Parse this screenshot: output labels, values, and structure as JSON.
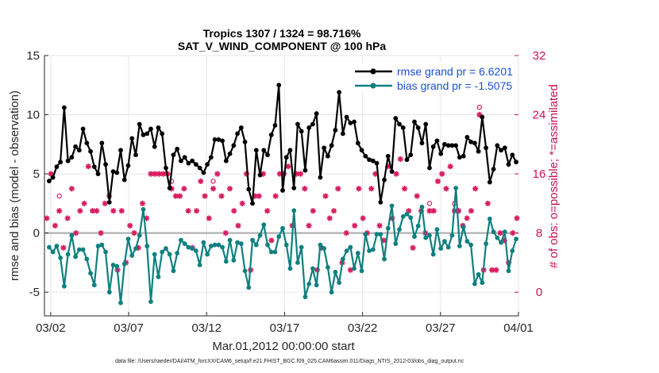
{
  "chart_data": {
    "type": "line",
    "title": "Tropics 1307 / 1324 = 98.716%",
    "subtitle": "SAT_V_WIND_COMPONENT @ 100 hPa",
    "xlabel": "Mar.01,2012 00:00:00 start",
    "ylabel": "rmse and bias (model - observation)",
    "ylabel_right": "# of obs: o=possible; *=assimilated",
    "x_range_days": [
      0.6,
      31
    ],
    "ylim": [
      -7,
      15
    ],
    "ylim_right": [
      -3.2,
      32
    ],
    "x_ticks": [
      {
        "day": 1,
        "label": "03/02"
      },
      {
        "day": 6,
        "label": "03/07"
      },
      {
        "day": 11,
        "label": "03/12"
      },
      {
        "day": 16,
        "label": "03/17"
      },
      {
        "day": 21,
        "label": "03/22"
      },
      {
        "day": 26,
        "label": "03/27"
      },
      {
        "day": 31,
        "label": "04/01"
      }
    ],
    "y_ticks": [
      "-5",
      "0",
      "5",
      "10",
      "15"
    ],
    "y_ticks_right": [
      "0",
      "8",
      "16",
      "24",
      "32"
    ],
    "grid": true,
    "colors": {
      "rmse": "#000000",
      "bias": "#0f8080",
      "obs": "#d81b60",
      "zero_line": "#aaaaaa"
    },
    "series": [
      {
        "name": "rmse grand pr = 6.6201",
        "color": "#000000",
        "values": [
          4.4,
          4.7,
          5.6,
          6.0,
          10.6,
          6.1,
          6.4,
          7.3,
          7.0,
          8.8,
          7.6,
          6.9,
          5.6,
          5.0,
          7.6,
          5.8,
          2.6,
          5.2,
          5.1,
          7.0,
          4.5,
          5.7,
          8.0,
          6.6,
          9.2,
          8.3,
          8.4,
          8.8,
          7.3,
          8.9,
          8.4,
          5.5,
          3.8,
          6.6,
          7.1,
          6.1,
          6.4,
          5.9,
          6.1,
          5.8,
          5.5,
          5.1,
          5.8,
          6.4,
          7.9,
          7.9,
          7.8,
          6.1,
          6.7,
          7.4,
          8.4,
          8.9,
          7.7,
          3.7,
          2.5,
          7.0,
          4.9,
          7.0,
          6.6,
          8.3,
          9.1,
          12.5,
          3.6,
          6.4,
          7.0,
          3.8,
          9.2,
          8.6,
          5.3,
          8.9,
          9.2,
          10.1,
          4.7,
          7.2,
          6.5,
          7.4,
          8.7,
          11.9,
          8.4,
          9.8,
          9.3,
          9.4,
          7.6,
          7.0,
          6.5,
          6.2,
          6.1,
          5.9,
          2.6,
          4.5,
          6.5,
          5.2,
          9.7,
          9.2,
          8.9,
          6.2,
          6.6,
          9.4,
          8.9,
          7.6,
          9.2,
          5.5,
          7.3,
          7.8,
          6.7,
          7.5,
          7.4,
          7.4,
          7.4,
          6.4,
          6.5,
          8.1,
          7.7,
          7.6,
          6.9,
          9.8,
          7.2,
          4.3,
          5.4,
          7.4,
          7.0,
          7.2,
          5.8,
          6.6,
          6.0
        ],
        "x_start": 0.9,
        "x_end": 30.85
      },
      {
        "name": "bias grand pr = -1.5075",
        "color": "#0f8080",
        "values": [
          -1.2,
          -1.6,
          -1.1,
          -2.1,
          -4.5,
          -1.8,
          -0.2,
          -2.0,
          -1.4,
          -1.4,
          -2.2,
          -3.4,
          -4.4,
          -1.1,
          -1.0,
          -1.6,
          -5.0,
          -2.7,
          -2.8,
          -5.9,
          -2.6,
          -0.5,
          -1.9,
          -1.3,
          -0.2,
          2.0,
          -1.1,
          -5.8,
          -1.8,
          -3.7,
          -1.6,
          -1.3,
          -1.8,
          -3.2,
          -1.7,
          -0.6,
          -0.9,
          -1.2,
          -1.3,
          -1.5,
          -2.7,
          -0.8,
          -1.8,
          -1.1,
          -1.0,
          -1.0,
          -1.2,
          -2.4,
          -0.6,
          -2.3,
          -0.8,
          -0.9,
          -3.2,
          -4.6,
          -0.6,
          -1.0,
          -0.2,
          0.7,
          -1.0,
          -1.6,
          -1.6,
          -0.3,
          0.4,
          -1.0,
          -3.0,
          1.9,
          -2.5,
          -1.2,
          -5.4,
          -4.3,
          -3.0,
          -4.4,
          -1.0,
          -1.3,
          -2.9,
          -5.0,
          -3.3,
          -4.2,
          -2.2,
          -1.5,
          -1.2,
          -3.0,
          -1.7,
          -3.2,
          -0.1,
          -1.5,
          -1.4,
          -0.1,
          -0.1,
          -2.2,
          0.4,
          2.3,
          -0.9,
          0.3,
          1.4,
          1.6,
          1.3,
          -0.3,
          0.6,
          2.2,
          -0.4,
          -0.2,
          -1.8,
          0.3,
          -1.3,
          -0.7,
          -1.2,
          -0.2,
          3.8,
          -1.1,
          0.5,
          -0.7,
          -1.0,
          -4.3,
          -3.5,
          -4.2,
          -0.9,
          1.2,
          0.1,
          -0.4,
          -0.8,
          0.1,
          -3.2,
          -1.5,
          -0.5
        ],
        "x_start": 0.9,
        "x_end": 30.85
      }
    ],
    "obs_counts": {
      "assimilated": [
        10,
        16,
        9,
        11,
        6,
        10,
        14,
        8,
        11,
        12,
        17,
        11,
        11,
        8,
        12,
        13,
        11,
        3,
        11,
        4,
        9,
        8,
        6,
        12,
        10,
        16,
        16,
        16,
        16,
        16,
        14,
        13,
        13,
        14,
        11,
        6,
        11,
        15,
        13,
        10,
        14,
        16,
        13,
        8,
        14,
        11,
        9,
        12,
        16,
        3,
        13,
        13,
        16,
        11,
        7,
        13,
        16,
        16,
        17,
        9,
        16,
        16,
        14,
        9,
        11,
        3,
        6,
        13,
        10,
        11,
        14,
        4,
        8,
        3,
        9,
        14,
        10,
        8,
        14,
        16,
        9,
        7,
        17,
        10,
        16,
        18,
        14,
        11,
        6,
        13,
        11,
        8,
        11,
        11,
        15,
        16,
        14,
        17,
        11,
        11,
        9,
        10,
        11,
        14,
        24,
        3,
        12,
        3,
        3,
        8,
        7,
        4,
        8,
        10
      ],
      "possible": [
        10,
        16,
        9,
        13,
        6,
        10,
        14,
        8,
        11,
        12,
        17,
        11,
        11,
        8,
        12,
        13,
        11,
        3,
        11,
        4,
        9,
        8,
        6,
        12,
        10,
        16,
        16,
        16,
        16,
        16,
        15,
        13,
        13,
        14,
        11,
        6,
        11,
        15,
        13,
        10,
        15,
        16,
        13,
        8,
        14,
        11,
        9,
        12,
        16,
        3,
        13,
        13,
        16,
        11,
        7,
        13,
        16,
        16,
        17,
        9,
        16,
        16,
        14,
        9,
        11,
        3,
        6,
        13,
        10,
        11,
        14,
        4,
        8,
        3,
        9,
        14,
        10,
        8,
        14,
        16,
        9,
        7,
        17,
        10,
        16,
        18,
        14,
        11,
        6,
        13,
        11,
        8,
        12,
        11,
        15,
        16,
        14,
        17,
        12,
        11,
        9,
        10,
        11,
        14,
        25,
        3,
        12,
        3,
        3,
        8,
        7,
        4,
        8,
        10
      ]
    },
    "footer": "data file: /Users/raeder/DAI/ATM_forcXX/CAM6_setup/f.e21.FHIST_BGC.f09_025.CAM6assim.011/Diags_NTrS_2012-03/obs_diag_output.nc"
  }
}
